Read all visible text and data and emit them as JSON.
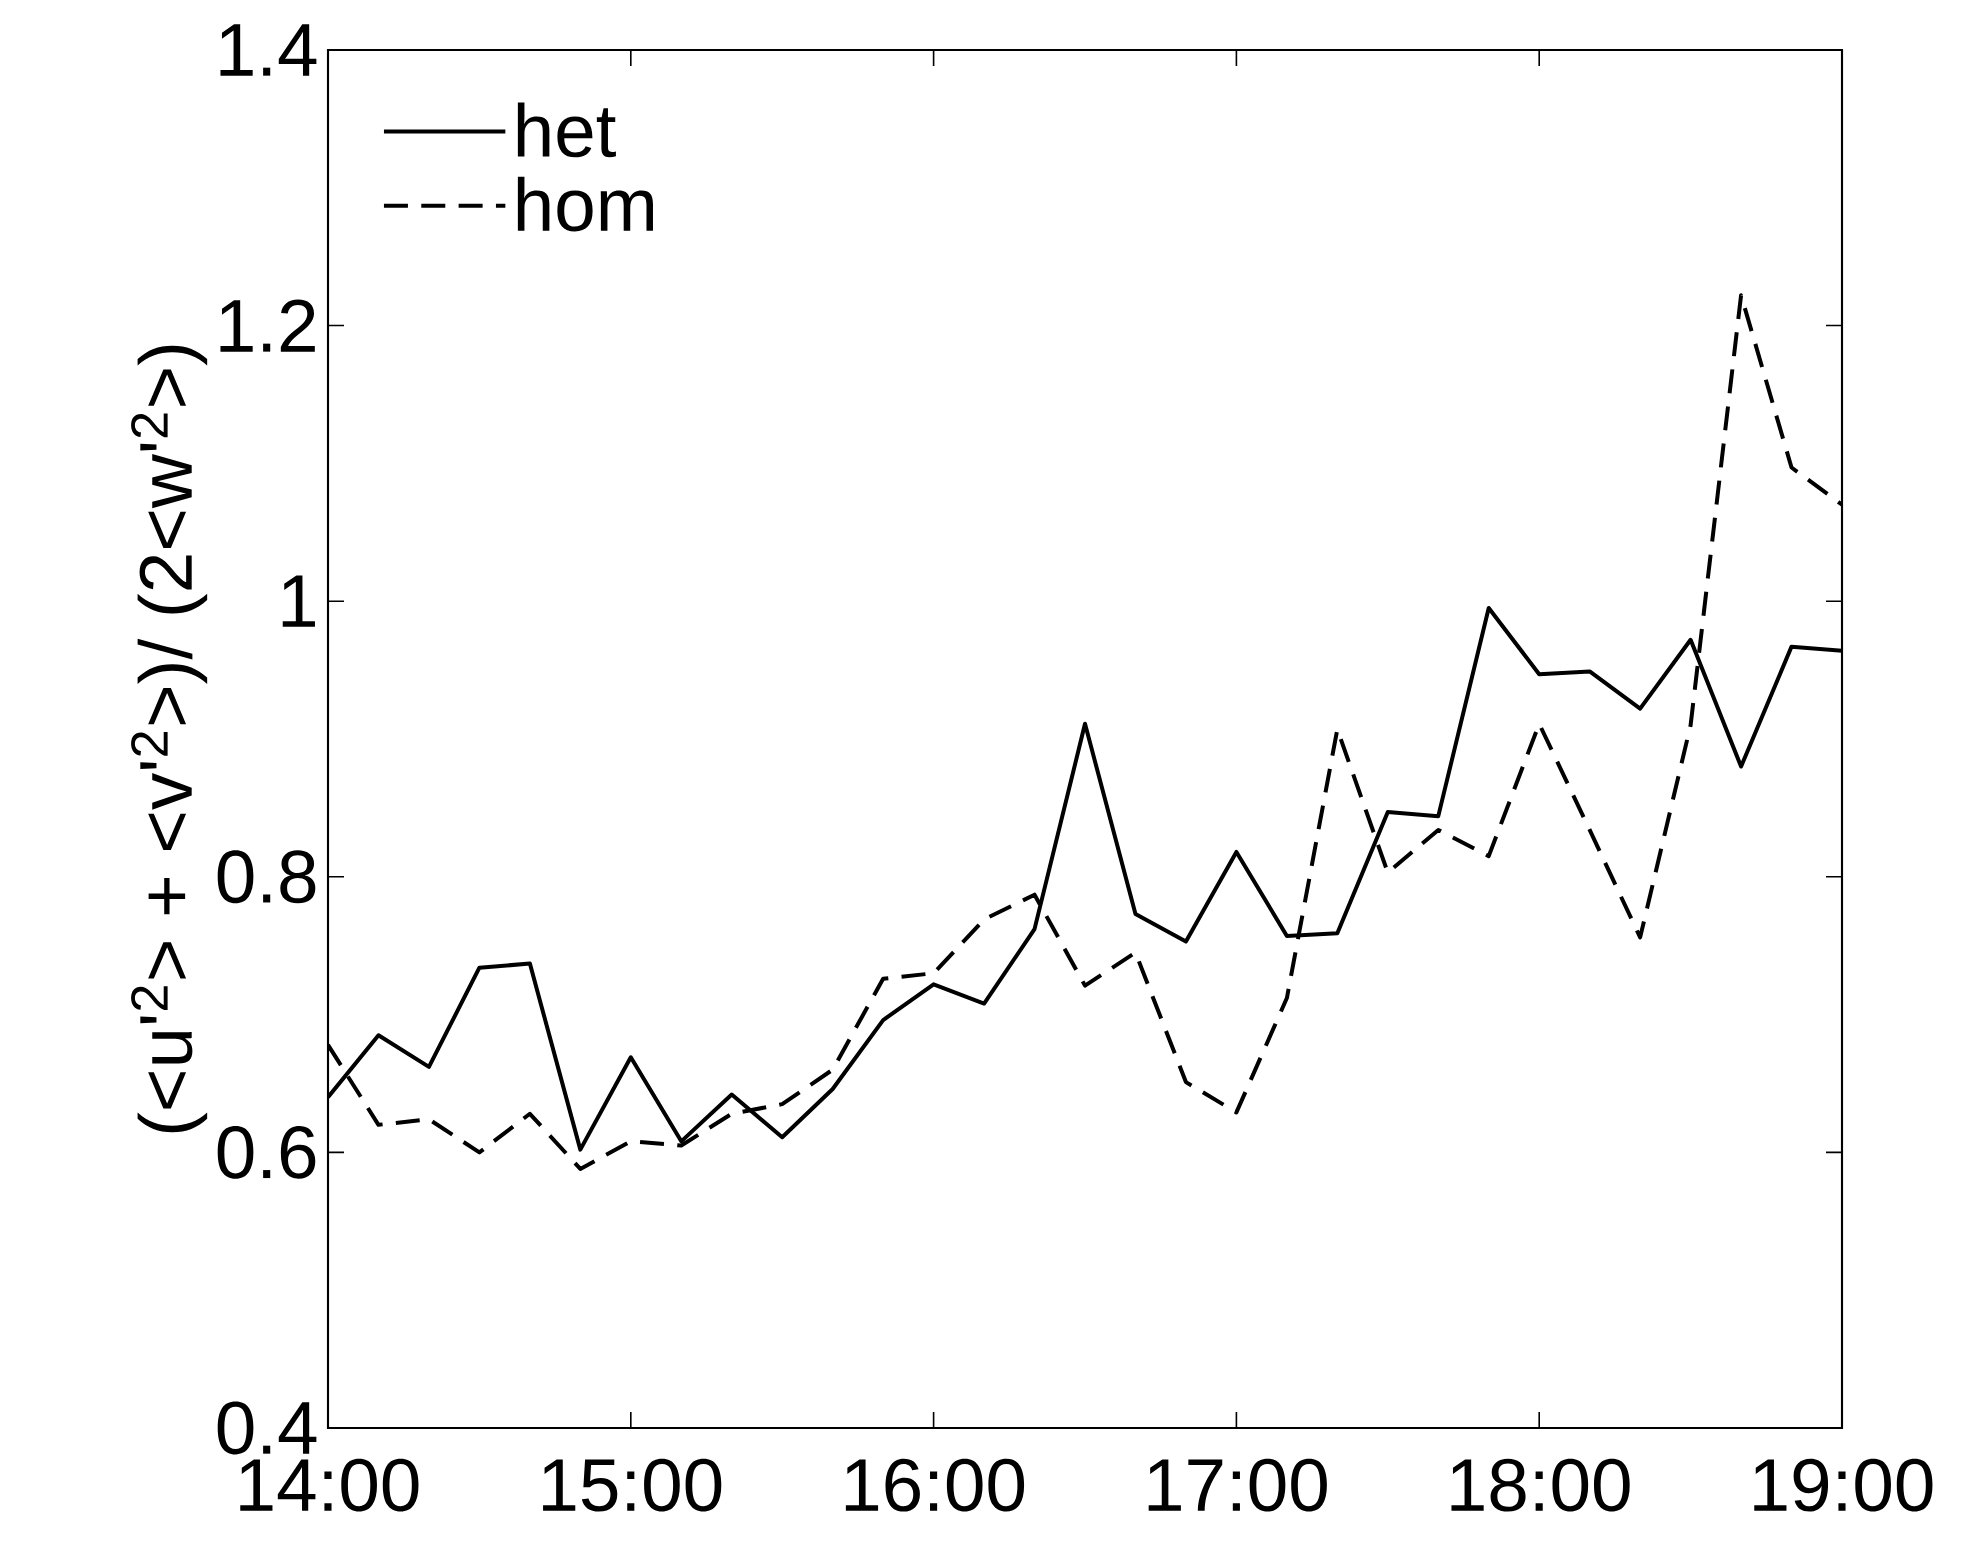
{
  "chart_data": {
    "type": "line",
    "ylabel": "(<u'$^{2}$> + <v'$^{2}$>)/ (2<w'$^{2}$>)",
    "x": [
      14,
      14.1667,
      14.3333,
      14.5,
      14.6667,
      14.8333,
      15,
      15.1667,
      15.3333,
      15.5,
      15.6667,
      15.8333,
      16,
      16.1667,
      16.3333,
      16.5,
      16.6667,
      16.8333,
      17,
      17.1667,
      17.3333,
      17.5,
      17.6667,
      17.8333,
      18,
      18.1667,
      18.3333,
      18.5,
      18.6667,
      18.8333,
      19
    ],
    "series": [
      {
        "name": "het",
        "color": "#000000",
        "line_style": "solid",
        "values": [
          0.64,
          0.685,
          0.662,
          0.734,
          0.737,
          0.602,
          0.669,
          0.608,
          0.642,
          0.611,
          0.646,
          0.696,
          0.722,
          0.708,
          0.762,
          0.911,
          0.773,
          0.753,
          0.818,
          0.757,
          0.759,
          0.847,
          0.844,
          0.995,
          0.947,
          0.949,
          0.922,
          0.972,
          0.88,
          0.967,
          0.964
        ]
      },
      {
        "name": "hom",
        "color": "#000000",
        "line_style": "dashed",
        "values": [
          0.678,
          0.62,
          0.624,
          0.6,
          0.628,
          0.588,
          0.608,
          0.605,
          0.628,
          0.635,
          0.66,
          0.726,
          0.73,
          0.769,
          0.787,
          0.721,
          0.745,
          0.651,
          0.629,
          0.712,
          0.907,
          0.803,
          0.834,
          0.815,
          0.911,
          0.834,
          0.756,
          0.91,
          1.222,
          1.097,
          1.07
        ]
      }
    ],
    "xlim": [
      14,
      19
    ],
    "xticks": [
      {
        "value": 14,
        "label": "14:00"
      },
      {
        "value": 15,
        "label": "15:00"
      },
      {
        "value": 16,
        "label": "16:00"
      },
      {
        "value": 17,
        "label": "17:00"
      },
      {
        "value": 18,
        "label": "18:00"
      },
      {
        "value": 19,
        "label": "19:00"
      }
    ],
    "ylim": [
      0.4,
      1.4
    ],
    "yticks": [
      0.4,
      0.6,
      0.8,
      1,
      1.2,
      1.4
    ],
    "grid": false,
    "legend": "top left"
  }
}
